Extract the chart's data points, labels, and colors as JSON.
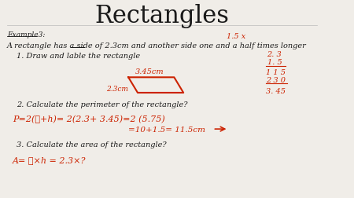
{
  "title": "Rectangles",
  "title_fontsize": 22,
  "title_font": "serif",
  "background_color": "#f0ede8",
  "text_color_black": "#1a1a1a",
  "text_color_red": "#cc2200",
  "example_label": "Example3:",
  "intro_text": "A rectangle has a side of 2.3cm and another side one and a half times longer",
  "item1_label": "1. Draw and lable the rectangle",
  "item2_label": "2. Calculate the perimeter of the rectangle?",
  "item2_formula": "P=2(ℓ+h)= 2(2.3+ 3.45)=2 (5.75)",
  "item2_result": "=10+1.5= 11.5cm",
  "item3_label": "3. Calculate the area of the rectangle?",
  "item3_formula": "A= ℓ×h = 2.3×?",
  "handwritten_15x": "1.5 x",
  "handwritten_345cm": "3.45cm",
  "handwritten_23cm": "2.3cm",
  "handwritten_calc_23": "2. 3",
  "handwritten_calc_15": "1. 5",
  "handwritten_calc_115": "1 1 5",
  "handwritten_calc_230": "2 3 0",
  "handwritten_calc_345": "3. 45",
  "parallelogram_color": "#cc2200",
  "arrow_color": "#cc2200"
}
